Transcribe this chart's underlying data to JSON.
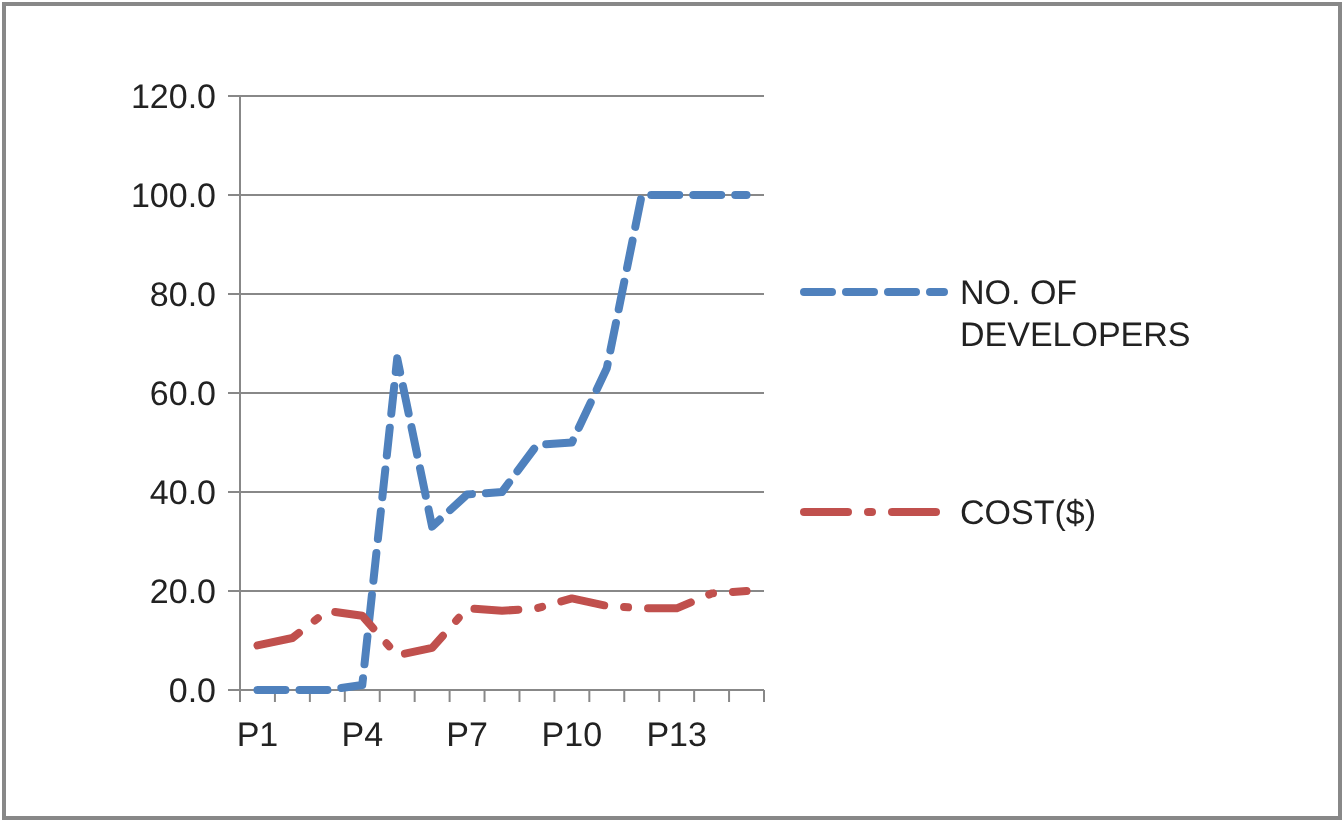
{
  "chart_data": {
    "type": "line",
    "categories": [
      "P1",
      null,
      null,
      "P4",
      null,
      null,
      "P7",
      null,
      null,
      "P10",
      null,
      null,
      "P13",
      null,
      null
    ],
    "series": [
      {
        "name": "NO. OF DEVELOPERS",
        "color": "#4f81bd",
        "line_style": "dashed",
        "values": [
          0,
          0,
          0,
          1,
          67,
          33,
          39.5,
          40,
          49.5,
          50,
          65,
          100,
          100,
          100,
          100
        ]
      },
      {
        "name": "COST($)",
        "color": "#c0504d",
        "line_style": "dashdot",
        "values": [
          9,
          10.5,
          16,
          15,
          7,
          8.5,
          16.5,
          16,
          16.5,
          18.5,
          17,
          16.5,
          16.5,
          19.5,
          20
        ]
      }
    ],
    "ylim": [
      0,
      120
    ],
    "yticks": [
      {
        "value": 0,
        "label": "0.0"
      },
      {
        "value": 20,
        "label": "20.0"
      },
      {
        "value": 40,
        "label": "40.0"
      },
      {
        "value": 60,
        "label": "60.0"
      },
      {
        "value": 80,
        "label": "80.0"
      },
      {
        "value": 100,
        "label": "100.0"
      },
      {
        "value": 120,
        "label": "120.0"
      }
    ],
    "grid": "y",
    "legend": "right"
  }
}
